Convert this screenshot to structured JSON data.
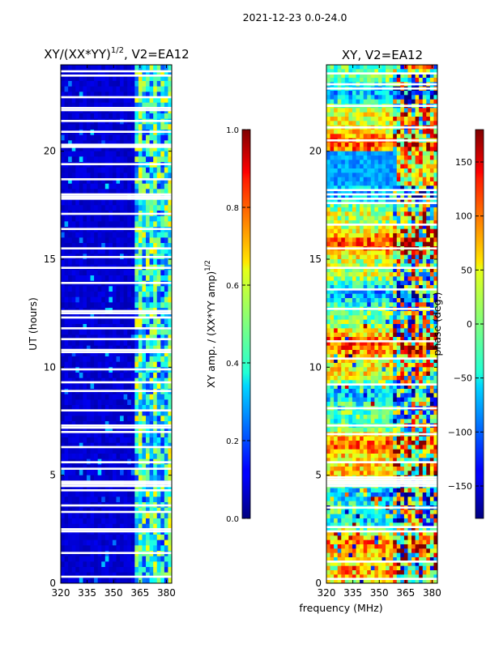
{
  "figure": {
    "suptitle": "2021-12-23 0.0-24.0",
    "xlabel_shared": "frequency (MHz)"
  },
  "chart_data": [
    {
      "type": "heatmap",
      "title_main": "XY/(XX*YY)",
      "title_exp": "1/2",
      "title_tail": ", V2=EA12",
      "ylabel": "UT (hours)",
      "xlim": [
        320,
        383
      ],
      "ylim": [
        0,
        24
      ],
      "xticks": [
        320,
        335,
        350,
        365,
        380
      ],
      "yticks": [
        0,
        5,
        10,
        15,
        20
      ],
      "colormap": "jet",
      "dominant_value_low_freq": 0.05,
      "dominant_value_high_freq": 0.4,
      "bright_band_start_mhz": 361,
      "flagged_rows_ut": [
        0.3,
        1.4,
        2.4,
        2.5,
        3.3,
        3.6,
        4.3,
        4.5,
        4.6,
        4.7,
        5.3,
        5.6,
        6.3,
        7.0,
        7.2,
        7.3,
        8.0,
        8.9,
        9.3,
        9.9,
        10.7,
        10.8,
        11.3,
        11.8,
        12.3,
        12.5,
        12.6,
        13.9,
        14.6,
        15.1,
        15.5,
        16.4,
        17.1,
        17.8,
        17.9,
        18.0,
        18.7,
        19.4,
        20.2,
        20.3,
        20.9,
        21.4,
        21.9,
        22.0,
        22.5,
        23.5,
        23.7
      ],
      "colorbar": {
        "label_main": "XY amp. / (XX*YY amp)",
        "label_exp": "1/2",
        "min": 0.0,
        "max": 1.0,
        "ticks": [
          "0.0",
          "0.2",
          "0.4",
          "0.6",
          "0.8",
          "1.0"
        ]
      }
    },
    {
      "type": "heatmap",
      "title": "XY, V2=EA12",
      "ylabel": "",
      "xlim": [
        320,
        383
      ],
      "ylim": [
        0,
        24
      ],
      "xticks": [
        320,
        335,
        350,
        365,
        380
      ],
      "yticks": [
        0,
        5,
        10,
        15,
        20
      ],
      "colormap": "jet",
      "phase_range_deg": [
        -180,
        180
      ],
      "blue_band_ut": [
        18.4,
        20.0
      ],
      "flagged_rows_ut": [
        0.2,
        1.0,
        2.4,
        2.6,
        3.5,
        4.5,
        4.6,
        4.7,
        4.8,
        4.9,
        5.6,
        6.9,
        7.3,
        8.1,
        9.2,
        10.4,
        11.2,
        12.7,
        13.6,
        14.6,
        15.5,
        16.6,
        17.6,
        17.8,
        18.0,
        18.2,
        20.5,
        21.1,
        22.1,
        22.9,
        23.1,
        23.6
      ],
      "colorbar": {
        "label": "phase (deg.)",
        "min": -180,
        "max": 180,
        "ticks": [
          "−150",
          "−100",
          "−50",
          "0",
          "50",
          "100",
          "150"
        ],
        "tick_values": [
          -150,
          -100,
          -50,
          0,
          50,
          100,
          150
        ]
      }
    }
  ]
}
